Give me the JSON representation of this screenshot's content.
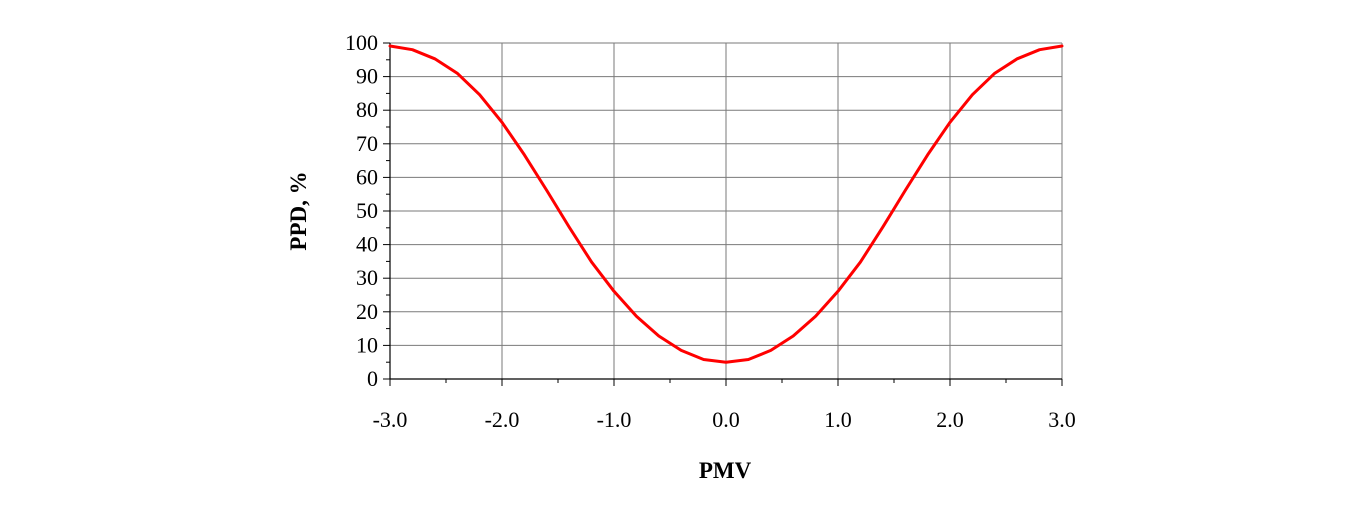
{
  "chart_data": {
    "type": "line",
    "title": "",
    "xlabel": "PMV",
    "ylabel": "PPD, %",
    "xlim": [
      -3.0,
      3.0
    ],
    "ylim": [
      0,
      100
    ],
    "x_ticks": [
      -3.0,
      -2.0,
      -1.0,
      0.0,
      1.0,
      2.0,
      3.0
    ],
    "x_tick_labels": [
      "-3.0",
      "-2.0",
      "-1.0",
      "0.0",
      "1.0",
      "2.0",
      "3.0"
    ],
    "y_ticks": [
      0,
      10,
      20,
      30,
      40,
      50,
      60,
      70,
      80,
      90,
      100
    ],
    "y_tick_labels": [
      "0",
      "10",
      "20",
      "30",
      "40",
      "50",
      "60",
      "70",
      "80",
      "90",
      "100"
    ],
    "grid": true,
    "legend": "none",
    "series": [
      {
        "color": "#ff0000",
        "x": [
          -3.0,
          -2.8,
          -2.6,
          -2.4,
          -2.2,
          -2.0,
          -1.8,
          -1.6,
          -1.4,
          -1.2,
          -1.0,
          -0.8,
          -0.6,
          -0.4,
          -0.2,
          0.0,
          0.2,
          0.4,
          0.6,
          0.8,
          1.0,
          1.2,
          1.4,
          1.6,
          1.8,
          2.0,
          2.2,
          2.4,
          2.6,
          2.8,
          3.0
        ],
        "y": [
          99.1,
          98.0,
          95.3,
          91.0,
          84.6,
          76.4,
          66.7,
          56.1,
          45.2,
          34.8,
          26.1,
          18.7,
          12.8,
          8.5,
          5.8,
          5.0,
          5.8,
          8.5,
          12.8,
          18.7,
          26.1,
          34.8,
          45.2,
          56.1,
          66.7,
          76.4,
          84.6,
          91.0,
          95.3,
          98.0,
          99.1
        ]
      }
    ]
  }
}
